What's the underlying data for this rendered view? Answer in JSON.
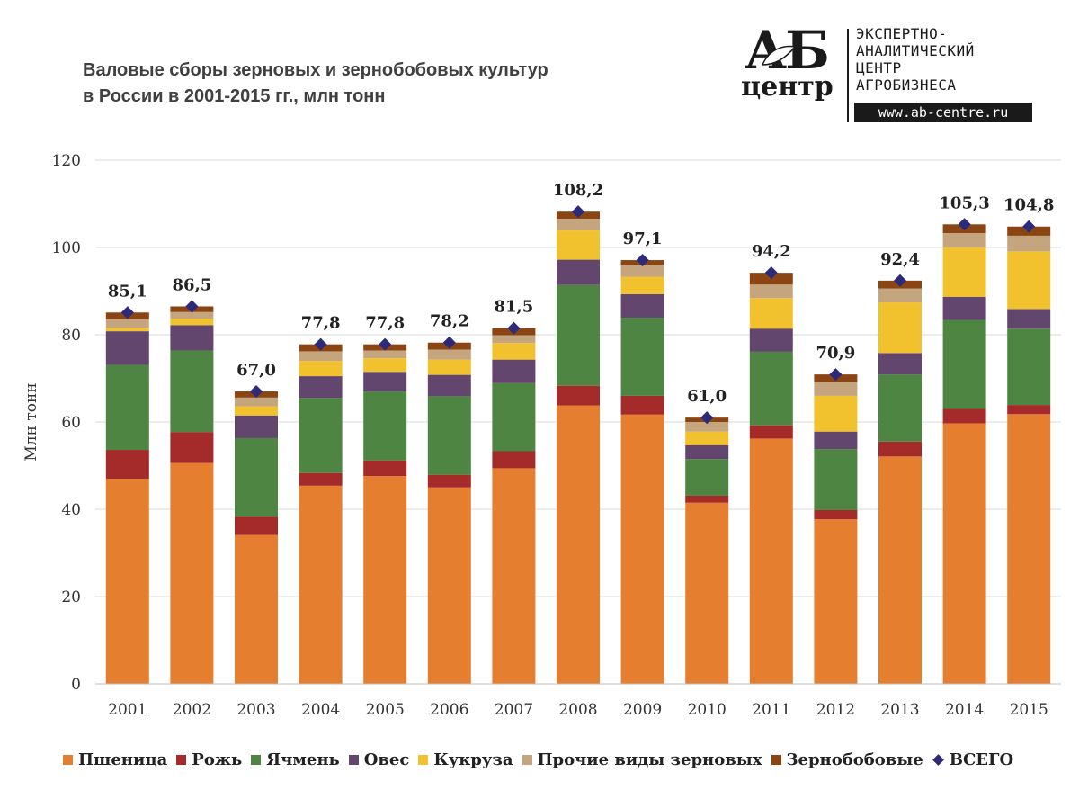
{
  "title": {
    "line1": "Валовые сборы зерновых и зернобобовых культур",
    "line2": "в России в 2001-2015 гг., млн тонн"
  },
  "logo": {
    "mark_top": "АБ",
    "mark_bottom": "центр",
    "lines": [
      "ЭКСПЕРТНО-",
      "АНАЛИТИЧЕСКИЙ",
      "ЦЕНТР",
      "АГРОБИЗНЕСА"
    ],
    "url": "www.ab-centre.ru"
  },
  "chart_data": {
    "type": "bar",
    "stacked": true,
    "ylabel": "Млн тонн",
    "ylim": [
      0,
      120
    ],
    "yticks": [
      0,
      20,
      40,
      60,
      80,
      100,
      120
    ],
    "grid": true,
    "legend_position": "bottom",
    "categories": [
      "2001",
      "2002",
      "2003",
      "2004",
      "2005",
      "2006",
      "2007",
      "2008",
      "2009",
      "2010",
      "2011",
      "2012",
      "2013",
      "2014",
      "2015"
    ],
    "series": [
      {
        "name": "Пшеница",
        "color": "#e67e30",
        "values": [
          47.0,
          50.6,
          34.1,
          45.4,
          47.6,
          45.0,
          49.4,
          63.8,
          61.7,
          41.5,
          56.2,
          37.7,
          52.1,
          59.7,
          61.8
        ]
      },
      {
        "name": "Рожь",
        "color": "#a52a2a",
        "values": [
          6.6,
          7.1,
          4.2,
          2.9,
          3.6,
          2.9,
          3.9,
          4.5,
          4.3,
          1.6,
          3.0,
          2.1,
          3.4,
          3.3,
          2.1
        ]
      },
      {
        "name": "Ячмень",
        "color": "#4e8542",
        "values": [
          19.5,
          18.7,
          18.0,
          17.2,
          15.8,
          18.0,
          15.6,
          23.1,
          17.9,
          8.4,
          16.9,
          14.0,
          15.4,
          20.4,
          17.5
        ]
      },
      {
        "name": "Овес",
        "color": "#63466e",
        "values": [
          7.7,
          5.8,
          5.2,
          5.0,
          4.5,
          4.9,
          5.4,
          5.8,
          5.4,
          3.2,
          5.3,
          4.0,
          4.9,
          5.3,
          4.5
        ]
      },
      {
        "name": "Кукруза",
        "color": "#f2c12e",
        "values": [
          0.8,
          1.5,
          2.1,
          3.5,
          3.1,
          3.5,
          3.8,
          6.7,
          4.0,
          3.1,
          7.0,
          8.2,
          11.6,
          11.3,
          13.2
        ]
      },
      {
        "name": "Прочие виды зерновых",
        "color": "#c4a57e",
        "values": [
          2.0,
          1.5,
          2.0,
          2.2,
          1.8,
          2.3,
          1.8,
          2.7,
          2.6,
          2.2,
          3.1,
          3.2,
          3.2,
          3.3,
          3.6
        ]
      },
      {
        "name": "Зернобобовые",
        "color": "#8b4513",
        "values": [
          1.5,
          1.3,
          1.4,
          1.6,
          1.4,
          1.6,
          1.6,
          1.6,
          1.2,
          1.0,
          2.7,
          1.7,
          1.8,
          2.0,
          2.1
        ]
      }
    ],
    "total": {
      "name": "ВСЕГО",
      "color": "#2e2a7a",
      "values": [
        85.1,
        86.5,
        67.0,
        77.8,
        77.8,
        78.2,
        81.5,
        108.2,
        97.1,
        61.0,
        94.2,
        70.9,
        92.4,
        105.3,
        104.8
      ],
      "labels": [
        "85,1",
        "86,5",
        "67,0",
        "77,8",
        "77,8",
        "78,2",
        "81,5",
        "108,2",
        "97,1",
        "61,0",
        "94,2",
        "70,9",
        "92,4",
        "105,3",
        "104,8"
      ]
    }
  }
}
